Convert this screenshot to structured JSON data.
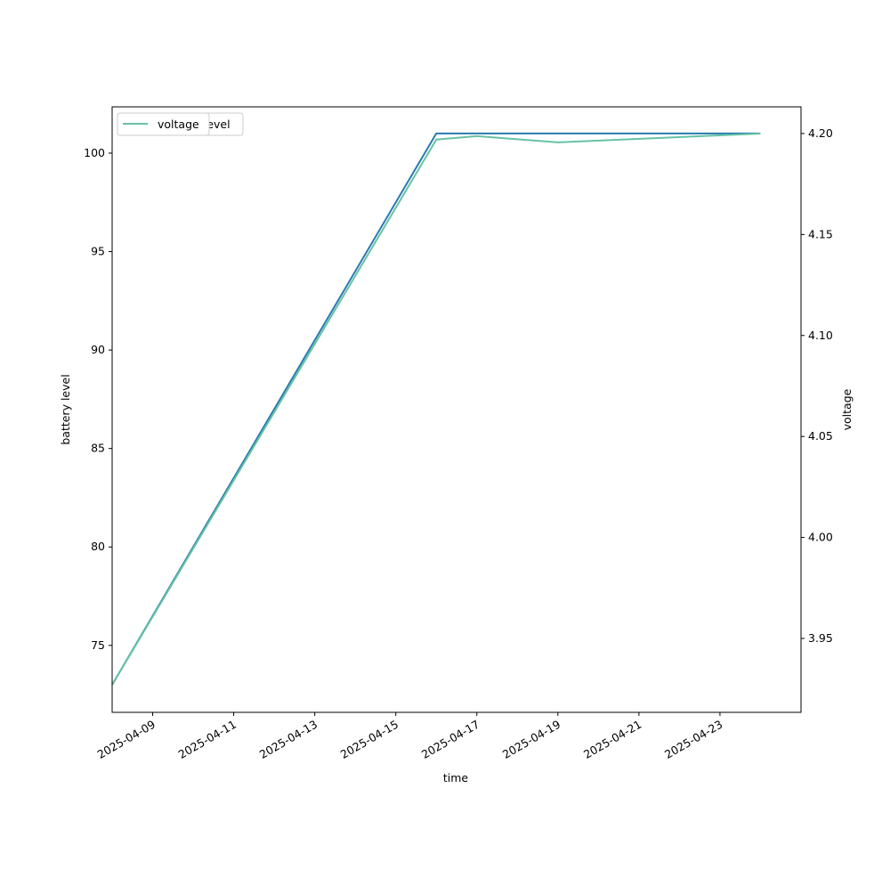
{
  "chart_data": {
    "type": "line",
    "xlabel": "time",
    "ylabel": "battery level",
    "y2label": "voltage",
    "xlim": [
      "2025-04-08",
      "2025-04-25"
    ],
    "xticks": [
      "2025-04-09",
      "2025-04-11",
      "2025-04-13",
      "2025-04-15",
      "2025-04-17",
      "2025-04-19",
      "2025-04-21",
      "2025-04-23"
    ],
    "ylim": [
      71.6,
      102.35
    ],
    "yticks": [
      75,
      80,
      85,
      90,
      95,
      100
    ],
    "y2lim": [
      3.9134,
      4.2132
    ],
    "y2ticks": [
      3.95,
      {
        "value": 4.0,
        "label": "4.00"
      },
      4.05,
      {
        "value": 4.1,
        "label": "4.10"
      },
      4.15,
      {
        "value": 4.2,
        "label": "4.20"
      }
    ],
    "series": [
      {
        "name": "battery_level",
        "color": "#2a7ab0",
        "x": [
          "2025-04-08",
          "2025-04-16",
          "2025-04-24"
        ],
        "values": [
          73,
          101,
          101
        ]
      },
      {
        "name": "voltage",
        "color": "#66c2a5",
        "axis": "y2",
        "x": [
          "2025-04-08",
          "2025-04-16",
          "2025-04-17",
          "2025-04-19",
          "2025-04-24"
        ],
        "values": [
          3.927,
          4.197,
          4.1987,
          4.1956,
          4.2
        ]
      }
    ]
  }
}
